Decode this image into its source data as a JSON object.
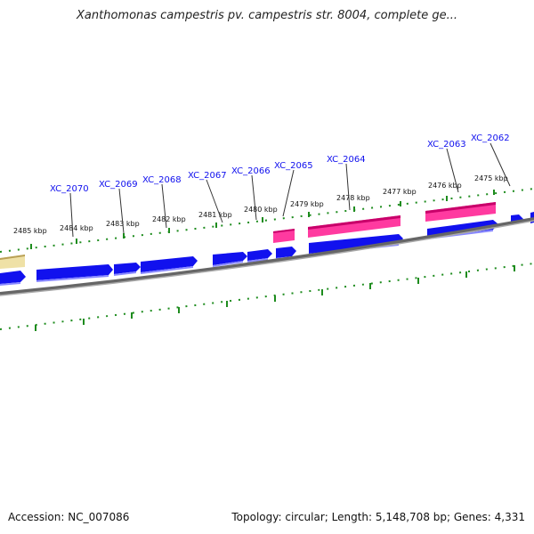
{
  "title": "Xanthomonas campestris pv. campestris str. 8004, complete ge...",
  "footer": {
    "accession": "Accession: NC_007086",
    "summary": "Topology: circular; Length: 5,148,708 bp; Genes: 4,331"
  },
  "colors": {
    "gene_forward": "#1111ee",
    "gene_highlight": "#ff2a9a",
    "gene_other": "#e4d08a",
    "tick": "#1e8c1e",
    "backbone": "#8a8a8a",
    "locus_label": "#1010ee"
  },
  "kbp_labels": [
    "2485 kbp",
    "2484 kbp",
    "2483 kbp",
    "2482 kbp",
    "2481 kbp",
    "2480 kbp",
    "2479 kbp",
    "2478 kbp",
    "2477 kbp",
    "2476 kbp",
    "2475 kbp"
  ],
  "locus_tags": [
    "XC_2070",
    "XC_2069",
    "XC_2068",
    "XC_2067",
    "XC_2066",
    "XC_2065",
    "XC_2064",
    "XC_2063",
    "XC_2062"
  ]
}
